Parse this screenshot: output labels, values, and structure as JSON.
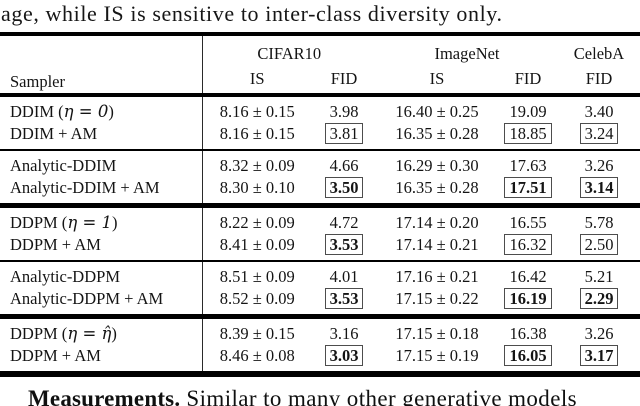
{
  "colors": {
    "ink": "#111111",
    "rule": "#000000",
    "box_border": "#4d4d4d"
  },
  "context": {
    "top_text": "age, while IS is sensitive to inter-class diversity only.",
    "bottom_bold": "Measurements.",
    "bottom_rest": " Similar to many other generative models"
  },
  "table": {
    "sampler_header": "Sampler",
    "column_groups": [
      {
        "label": "CIFAR10",
        "subcols": [
          "IS",
          "FID"
        ]
      },
      {
        "label": "ImageNet",
        "subcols": [
          "IS",
          "FID"
        ]
      },
      {
        "label": "CelebA",
        "subcols": [
          "FID"
        ]
      }
    ],
    "groups": [
      {
        "separator": "none",
        "rows": [
          {
            "sampler": {
              "pre": "DDIM (",
              "math": "η = 0",
              "post": ")"
            },
            "cells": [
              {
                "text": "8.16 ± 0.15"
              },
              {
                "text": "3.98"
              },
              {
                "text": "16.40 ± 0.25"
              },
              {
                "text": "19.09"
              },
              {
                "text": "3.40"
              }
            ]
          },
          {
            "sampler": {
              "pre": "DDIM + AM",
              "math": "",
              "post": ""
            },
            "cells": [
              {
                "text": "8.16 ± 0.15"
              },
              {
                "text": "3.81",
                "boxed": true
              },
              {
                "text": "16.35 ± 0.28"
              },
              {
                "text": "18.85",
                "boxed": true
              },
              {
                "text": "3.24",
                "boxed": true
              }
            ]
          }
        ]
      },
      {
        "separator": "thin",
        "rows": [
          {
            "sampler": {
              "pre": "Analytic-DDIM",
              "math": "",
              "post": ""
            },
            "cells": [
              {
                "text": "8.32 ± 0.09"
              },
              {
                "text": "4.66"
              },
              {
                "text": "16.29 ± 0.30"
              },
              {
                "text": "17.63"
              },
              {
                "text": "3.26"
              }
            ]
          },
          {
            "sampler": {
              "pre": "Analytic-DDIM + AM",
              "math": "",
              "post": ""
            },
            "cells": [
              {
                "text": "8.30 ± 0.10"
              },
              {
                "text": "3.50",
                "boxed": true,
                "bold": true
              },
              {
                "text": "16.35 ± 0.28"
              },
              {
                "text": "17.51",
                "boxed": true,
                "bold": true
              },
              {
                "text": "3.14",
                "boxed": true,
                "bold": true
              }
            ]
          }
        ]
      },
      {
        "separator": "thick",
        "rows": [
          {
            "sampler": {
              "pre": "DDPM (",
              "math": "η = 1",
              "post": ")"
            },
            "cells": [
              {
                "text": "8.22 ± 0.09"
              },
              {
                "text": "4.72"
              },
              {
                "text": "17.14 ± 0.20"
              },
              {
                "text": "16.55"
              },
              {
                "text": "5.78"
              }
            ]
          },
          {
            "sampler": {
              "pre": "DDPM + AM",
              "math": "",
              "post": ""
            },
            "cells": [
              {
                "text": "8.41 ± 0.09"
              },
              {
                "text": "3.53",
                "boxed": true,
                "bold": true
              },
              {
                "text": "17.14 ± 0.21"
              },
              {
                "text": "16.32",
                "boxed": true
              },
              {
                "text": "2.50",
                "boxed": true
              }
            ]
          }
        ]
      },
      {
        "separator": "thin",
        "rows": [
          {
            "sampler": {
              "pre": "Analytic-DDPM",
              "math": "",
              "post": ""
            },
            "cells": [
              {
                "text": "8.51 ± 0.09"
              },
              {
                "text": "4.01"
              },
              {
                "text": "17.16 ± 0.21"
              },
              {
                "text": "16.42"
              },
              {
                "text": "5.21"
              }
            ]
          },
          {
            "sampler": {
              "pre": "Analytic-DDPM + AM",
              "math": "",
              "post": ""
            },
            "cells": [
              {
                "text": "8.52 ± 0.09"
              },
              {
                "text": "3.53",
                "boxed": true,
                "bold": true
              },
              {
                "text": "17.15 ± 0.22"
              },
              {
                "text": "16.19",
                "boxed": true,
                "bold": true
              },
              {
                "text": "2.29",
                "boxed": true,
                "bold": true
              }
            ]
          }
        ]
      },
      {
        "separator": "thick",
        "rows": [
          {
            "sampler": {
              "pre": "DDPM (",
              "math": "η = η̂",
              "post": ")"
            },
            "cells": [
              {
                "text": "8.39 ± 0.15"
              },
              {
                "text": "3.16"
              },
              {
                "text": "17.15 ± 0.18"
              },
              {
                "text": "16.38"
              },
              {
                "text": "3.26"
              }
            ]
          },
          {
            "sampler": {
              "pre": "DDPM + AM",
              "math": "",
              "post": ""
            },
            "cells": [
              {
                "text": "8.46 ± 0.08"
              },
              {
                "text": "3.03",
                "boxed": true,
                "bold": true
              },
              {
                "text": "17.15 ± 0.19"
              },
              {
                "text": "16.05",
                "boxed": true,
                "bold": true
              },
              {
                "text": "3.17",
                "boxed": true,
                "bold": true
              }
            ]
          }
        ]
      }
    ]
  }
}
